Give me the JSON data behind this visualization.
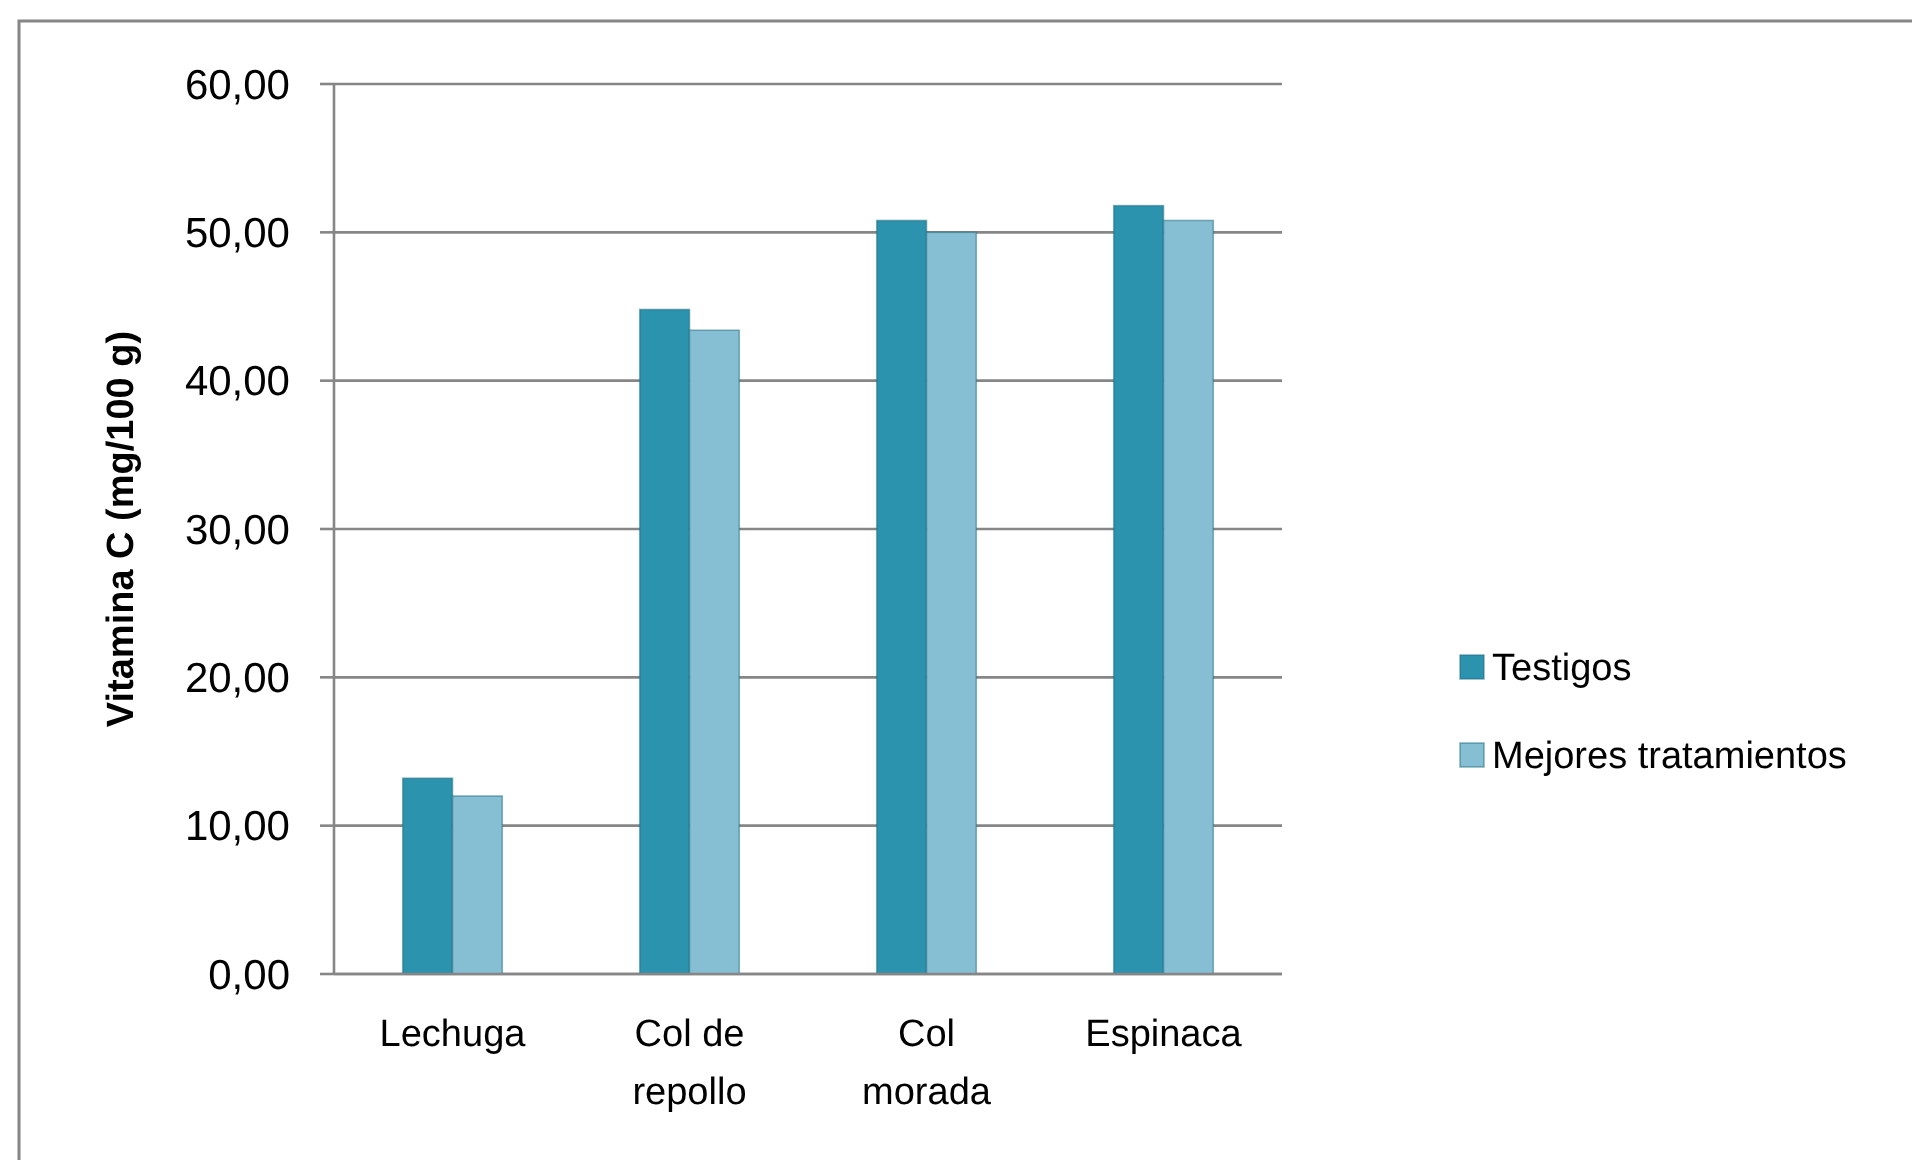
{
  "chart_data": {
    "type": "bar",
    "ylabel": "Vitamina C (mg/100 g)",
    "categories": [
      "Lechuga",
      "Col de repollo",
      "Col morada",
      "Espinaca"
    ],
    "series": [
      {
        "name": "Testigos",
        "color": "#2b93ad",
        "values": [
          13.2,
          44.8,
          50.8,
          51.8
        ]
      },
      {
        "name": "Mejores tratamientos",
        "color": "#86bfd4",
        "values": [
          12.0,
          43.4,
          50.0,
          50.8
        ]
      }
    ],
    "ylim": [
      0,
      60
    ],
    "yticks": [
      {
        "value": 0,
        "label": "0,00"
      },
      {
        "value": 10,
        "label": "10,00"
      },
      {
        "value": 20,
        "label": "20,00"
      },
      {
        "value": 30,
        "label": "30,00"
      },
      {
        "value": 40,
        "label": "40,00"
      },
      {
        "value": 50,
        "label": "50,00"
      },
      {
        "value": 60,
        "label": "60,00"
      }
    ],
    "grid": "y",
    "legend": "right"
  }
}
